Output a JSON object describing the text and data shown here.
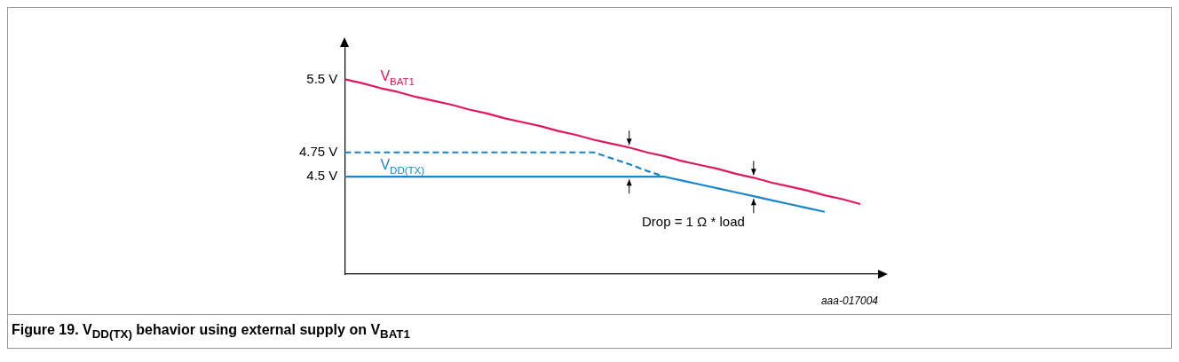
{
  "chart_data": {
    "type": "line",
    "title": "Figure 19.  V$_{DD(TX)}$ behavior using external supply on V$_{BAT1}$",
    "categories": [
      null,
      null,
      null,
      null,
      null,
      null,
      null,
      null,
      null,
      null,
      null,
      null,
      null,
      null,
      null,
      null,
      null,
      null,
      null,
      null,
      null,
      null,
      null,
      null,
      null,
      null,
      null,
      null,
      null,
      null,
      null
    ],
    "series": [
      {
        "name": "V$_{BAT1}$",
        "color": "#e2185b",
        "values": [
          5.5,
          5.46,
          5.41,
          5.37,
          5.32,
          5.28,
          5.24,
          5.19,
          5.15,
          5.1,
          5.06,
          5.02,
          4.97,
          4.93,
          4.88,
          4.84,
          4.8,
          4.75,
          4.71,
          4.66,
          4.62,
          4.58,
          4.53,
          4.49,
          4.44,
          4.4,
          4.36,
          4.31,
          4.27,
          4.22,
          null
        ]
      },
      {
        "name": "V$_{DD(TX)}$",
        "color": "#1a85c8",
        "values": [
          4.5,
          4.5,
          4.5,
          4.5,
          4.5,
          4.5,
          4.5,
          4.5,
          4.5,
          4.5,
          4.5,
          4.5,
          4.5,
          4.5,
          4.5,
          4.5,
          4.5,
          4.5,
          4.5,
          4.46,
          4.42,
          4.38,
          4.34,
          4.3,
          4.26,
          4.22,
          4.18,
          4.14,
          null,
          null,
          null
        ]
      },
      {
        "color": "#1a85c8",
        "line_style": "dashed",
        "values": [
          4.75,
          4.75,
          4.75,
          4.75,
          4.75,
          4.75,
          4.75,
          4.75,
          4.75,
          4.75,
          4.75,
          4.75,
          4.75,
          4.75,
          4.75,
          4.69,
          4.63,
          4.56,
          4.5,
          null,
          null,
          null,
          null,
          null,
          null,
          null,
          null,
          null,
          null,
          null,
          null
        ]
      }
    ],
    "ylim": [
      3.5,
      5.85
    ],
    "yticks": [
      {
        "value": 4.5,
        "label": "4.5 V"
      },
      {
        "value": 4.75,
        "label": "4.75 V"
      },
      {
        "value": 5.5,
        "label": "5.5 V"
      }
    ],
    "tick_labels": "y",
    "grid": false,
    "legend": false,
    "marker": "none",
    "line_style": "solid",
    "annotations": [
      "Drop = 1 Ω * load",
      "aaa-017004"
    ]
  }
}
